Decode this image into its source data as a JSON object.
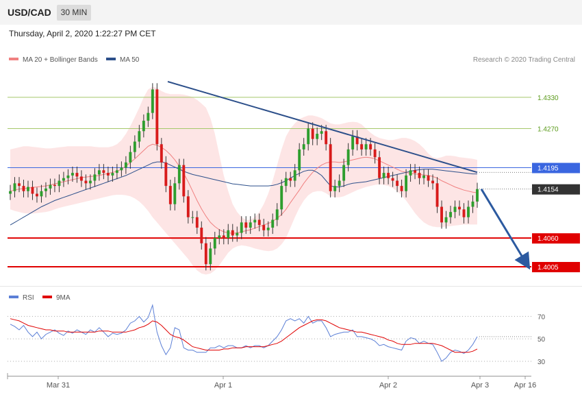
{
  "header": {
    "symbol": "USD/CAD",
    "timeframe": "30 MIN",
    "datetime": "Thursday, April 2, 2020 1:22:27 PM CET"
  },
  "chart_data": [
    {
      "type": "candlestick",
      "legend": [
        {
          "label": "MA 20 + Bollinger Bands",
          "color": "#f08080"
        },
        {
          "label": "MA 50",
          "color": "#2c4f8a"
        }
      ],
      "credit": "Research © 2020 Trading Central",
      "ylim": [
        1.398,
        1.4385
      ],
      "x_ticks": [
        "Mar 31",
        "Apr 1",
        "Apr 2",
        "Apr 3",
        "Apr 16"
      ],
      "levels": [
        {
          "value": 1.433,
          "label": "1.4330",
          "kind": "resistance",
          "color": "#7cb342"
        },
        {
          "value": 1.427,
          "label": "1.4270",
          "kind": "resistance",
          "color": "#7cb342"
        },
        {
          "value": 1.4195,
          "label": "1.4195",
          "kind": "pivot",
          "color": "#3a66e0"
        },
        {
          "value": 1.406,
          "label": "1.4060",
          "kind": "support",
          "color": "#e00000"
        },
        {
          "value": 1.4005,
          "label": "1.4005",
          "kind": "support",
          "color": "#e00000"
        }
      ],
      "last_price": {
        "value": 1.4154,
        "label": "1.4154",
        "color": "#333333"
      },
      "trendline": [
        1.436,
        1.4186
      ],
      "forecast_target": 1.4005,
      "candles_close": [
        1.415,
        1.4165,
        1.416,
        1.415,
        1.4158,
        1.4145,
        1.414,
        1.415,
        1.4155,
        1.4162,
        1.416,
        1.417,
        1.4175,
        1.418,
        1.4185,
        1.4178,
        1.417,
        1.4165,
        1.417,
        1.4182,
        1.419,
        1.4185,
        1.418,
        1.4185,
        1.419,
        1.4195,
        1.4205,
        1.4225,
        1.4245,
        1.4265,
        1.4285,
        1.43,
        1.4345,
        1.424,
        1.4205,
        1.416,
        1.4125,
        1.4165,
        1.42,
        1.414,
        1.41,
        1.41,
        1.408,
        1.405,
        1.401,
        1.404,
        1.406,
        1.4065,
        1.406,
        1.4075,
        1.4065,
        1.407,
        1.409,
        1.408,
        1.409,
        1.4095,
        1.4085,
        1.4075,
        1.408,
        1.4095,
        1.4115,
        1.416,
        1.4175,
        1.417,
        1.419,
        1.423,
        1.424,
        1.427,
        1.425,
        1.426,
        1.4265,
        1.424,
        1.415,
        1.416,
        1.417,
        1.42,
        1.423,
        1.4255,
        1.424,
        1.423,
        1.424,
        1.423,
        1.4215,
        1.4175,
        1.4185,
        1.4175,
        1.417,
        1.416,
        1.415,
        1.418,
        1.419,
        1.4185,
        1.4175,
        1.418,
        1.417,
        1.4165,
        1.412,
        1.409,
        1.41,
        1.411,
        1.412,
        1.4115,
        1.41,
        1.412,
        1.413,
        1.4154
      ],
      "ma20": [
        1.415,
        1.4152,
        1.4154,
        1.4155,
        1.4156,
        1.4157,
        1.4158,
        1.4159,
        1.416,
        1.4162,
        1.4164,
        1.4166,
        1.4168,
        1.417,
        1.4172,
        1.4174,
        1.4176,
        1.4177,
        1.4178,
        1.4179,
        1.418,
        1.4182,
        1.4184,
        1.4186,
        1.4188,
        1.4192,
        1.4198,
        1.4205,
        1.4212,
        1.422,
        1.4228,
        1.4236,
        1.424,
        1.4238,
        1.4234,
        1.4228,
        1.422,
        1.421,
        1.4198,
        1.4184,
        1.4168,
        1.415,
        1.4132,
        1.4116,
        1.4102,
        1.409,
        1.4082,
        1.4076,
        1.4072,
        1.407,
        1.4069,
        1.407,
        1.4072,
        1.4074,
        1.4076,
        1.4079,
        1.4082,
        1.4085,
        1.4088,
        1.4092,
        1.4098,
        1.4105,
        1.4115,
        1.4128,
        1.414,
        1.4152,
        1.4165,
        1.4176,
        1.4186,
        1.4194,
        1.42,
        1.4204,
        1.4206,
        1.4206,
        1.4205,
        1.4206,
        1.4208,
        1.421,
        1.4212,
        1.4214,
        1.4215,
        1.4214,
        1.4212,
        1.4208,
        1.4204,
        1.42,
        1.4196,
        1.4192,
        1.4188,
        1.4186,
        1.4184,
        1.4183,
        1.4182,
        1.4181,
        1.418,
        1.4178,
        1.4175,
        1.417,
        1.4166,
        1.4162,
        1.4158,
        1.4155,
        1.4152,
        1.415,
        1.4148,
        1.4147
      ],
      "ma50": [
        1.4085,
        1.409,
        1.4095,
        1.41,
        1.4105,
        1.411,
        1.4115,
        1.412,
        1.4124,
        1.4128,
        1.4132,
        1.4135,
        1.4138,
        1.4141,
        1.4144,
        1.4147,
        1.415,
        1.4153,
        1.4156,
        1.4159,
        1.4162,
        1.4165,
        1.4168,
        1.4171,
        1.4174,
        1.4177,
        1.418,
        1.4184,
        1.4188,
        1.4192,
        1.4196,
        1.42,
        1.4204,
        1.4206,
        1.4206,
        1.4204,
        1.42,
        1.4196,
        1.4192,
        1.4188,
        1.4185,
        1.4182,
        1.418,
        1.4178,
        1.4176,
        1.4174,
        1.4172,
        1.417,
        1.4168,
        1.4166,
        1.4164,
        1.4163,
        1.4162,
        1.4161,
        1.416,
        1.416,
        1.416,
        1.416,
        1.416,
        1.4161,
        1.4163,
        1.4166,
        1.417,
        1.4175,
        1.418,
        1.4184,
        1.4188,
        1.419,
        1.419,
        1.4186,
        1.418,
        1.417,
        1.416,
        1.4158,
        1.4158,
        1.416,
        1.4163,
        1.4165,
        1.4166,
        1.4167,
        1.4168,
        1.417,
        1.4172,
        1.4174,
        1.4176,
        1.4178,
        1.418,
        1.4182,
        1.4184,
        1.4186,
        1.4188,
        1.419,
        1.4191,
        1.4192,
        1.4192,
        1.4192,
        1.4191,
        1.419,
        1.4189,
        1.4188,
        1.4187,
        1.4186,
        1.4185,
        1.4184,
        1.4183,
        1.4183
      ],
      "bollinger_upper": [
        1.423,
        1.4232,
        1.4234,
        1.4236,
        1.4236,
        1.4235,
        1.4234,
        1.4233,
        1.4232,
        1.4232,
        1.4233,
        1.4234,
        1.4235,
        1.4236,
        1.4236,
        1.4236,
        1.4236,
        1.4236,
        1.4236,
        1.4235,
        1.4234,
        1.4234,
        1.4234,
        1.4236,
        1.424,
        1.4248,
        1.426,
        1.4275,
        1.4292,
        1.431,
        1.433,
        1.4345,
        1.435,
        1.4348,
        1.4342,
        1.4338,
        1.4336,
        1.4336,
        1.4336,
        1.4335,
        1.4333,
        1.433,
        1.4325,
        1.4318,
        1.431,
        1.429,
        1.426,
        1.422,
        1.418,
        1.415,
        1.4125,
        1.411,
        1.41,
        1.4095,
        1.4095,
        1.41,
        1.411,
        1.4125,
        1.4145,
        1.417,
        1.42,
        1.423,
        1.4255,
        1.427,
        1.428,
        1.4288,
        1.4292,
        1.4295,
        1.4295,
        1.4293,
        1.429,
        1.4285,
        1.428,
        1.4278,
        1.4278,
        1.428,
        1.4282,
        1.4283,
        1.4282,
        1.4278,
        1.427,
        1.4262,
        1.4256,
        1.4252,
        1.425,
        1.4248,
        1.4248,
        1.425,
        1.4252,
        1.4252,
        1.425,
        1.4246,
        1.424,
        1.4232,
        1.4222,
        1.4215,
        1.4213,
        1.4215,
        1.4218,
        1.4218,
        1.4217,
        1.4215,
        1.4214,
        1.4213,
        1.4212,
        1.421
      ],
      "bollinger_lower": [
        1.4115,
        1.4112,
        1.411,
        1.4108,
        1.4107,
        1.4107,
        1.4108,
        1.4109,
        1.411,
        1.4112,
        1.4115,
        1.4118,
        1.412,
        1.4122,
        1.4124,
        1.4126,
        1.4128,
        1.413,
        1.4132,
        1.4134,
        1.4136,
        1.4138,
        1.414,
        1.4142,
        1.4143,
        1.4143,
        1.4142,
        1.414,
        1.4136,
        1.413,
        1.4122,
        1.4112,
        1.41,
        1.409,
        1.408,
        1.407,
        1.406,
        1.405,
        1.404,
        1.403,
        1.402,
        1.4008,
        1.3998,
        1.3992,
        1.399,
        1.3992,
        1.3998,
        1.4008,
        1.402,
        1.4032,
        1.404,
        1.4044,
        1.4046,
        1.4045,
        1.4043,
        1.404,
        1.4038,
        1.4036,
        1.4035,
        1.4036,
        1.404,
        1.4048,
        1.406,
        1.408,
        1.41,
        1.4118,
        1.4132,
        1.4142,
        1.4148,
        1.415,
        1.415,
        1.4146,
        1.414,
        1.4138,
        1.4138,
        1.414,
        1.4144,
        1.4148,
        1.4152,
        1.4155,
        1.4158,
        1.416,
        1.4162,
        1.4163,
        1.4162,
        1.416,
        1.4156,
        1.415,
        1.4142,
        1.4132,
        1.412,
        1.4108,
        1.4098,
        1.409,
        1.4085,
        1.4082,
        1.4081,
        1.4081,
        1.4082,
        1.4083,
        1.4084,
        1.4085,
        1.4086,
        1.4086,
        1.4086,
        1.4086
      ]
    },
    {
      "type": "line",
      "legend": [
        {
          "label": "RSI",
          "color": "#5b7fd6"
        },
        {
          "label": "9MA",
          "color": "#e00000"
        }
      ],
      "ylim": [
        22,
        80
      ],
      "y_ticks": [
        70,
        50,
        30
      ],
      "rsi": [
        63,
        61,
        58,
        62,
        56,
        52,
        56,
        50,
        54,
        56,
        58,
        55,
        53,
        57,
        55,
        58,
        56,
        54,
        58,
        56,
        60,
        56,
        52,
        55,
        54,
        55,
        58,
        64,
        66,
        70,
        65,
        69,
        80,
        56,
        44,
        36,
        42,
        60,
        58,
        42,
        40,
        40,
        38,
        38,
        38,
        42,
        42,
        44,
        42,
        44,
        44,
        42,
        42,
        44,
        42,
        44,
        44,
        42,
        44,
        48,
        52,
        58,
        66,
        68,
        66,
        68,
        64,
        70,
        64,
        66,
        66,
        60,
        52,
        54,
        55,
        56,
        56,
        58,
        52,
        52,
        51,
        50,
        48,
        44,
        45,
        43,
        42,
        41,
        40,
        48,
        51,
        50,
        46,
        48,
        46,
        45,
        38,
        30,
        33,
        38,
        40,
        39,
        37,
        40,
        45,
        52
      ],
      "ma9": [
        68,
        67,
        66,
        64,
        62,
        61,
        60,
        59,
        58,
        58,
        57,
        57,
        57,
        56,
        56,
        56,
        56,
        56,
        56,
        56,
        57,
        57,
        57,
        56,
        56,
        56,
        56,
        57,
        58,
        60,
        61,
        63,
        66,
        65,
        62,
        58,
        54,
        52,
        51,
        49,
        46,
        43,
        42,
        41,
        40,
        40,
        40,
        40,
        41,
        41,
        42,
        42,
        42,
        43,
        43,
        43,
        43,
        43,
        44,
        45,
        46,
        48,
        51,
        54,
        57,
        60,
        62,
        64,
        66,
        67,
        67,
        66,
        64,
        62,
        60,
        59,
        58,
        57,
        56,
        56,
        55,
        54,
        53,
        52,
        51,
        49,
        48,
        46,
        45,
        45,
        45,
        46,
        46,
        46,
        46,
        46,
        45,
        44,
        42,
        40,
        38,
        38,
        38,
        38,
        39,
        41
      ]
    }
  ]
}
